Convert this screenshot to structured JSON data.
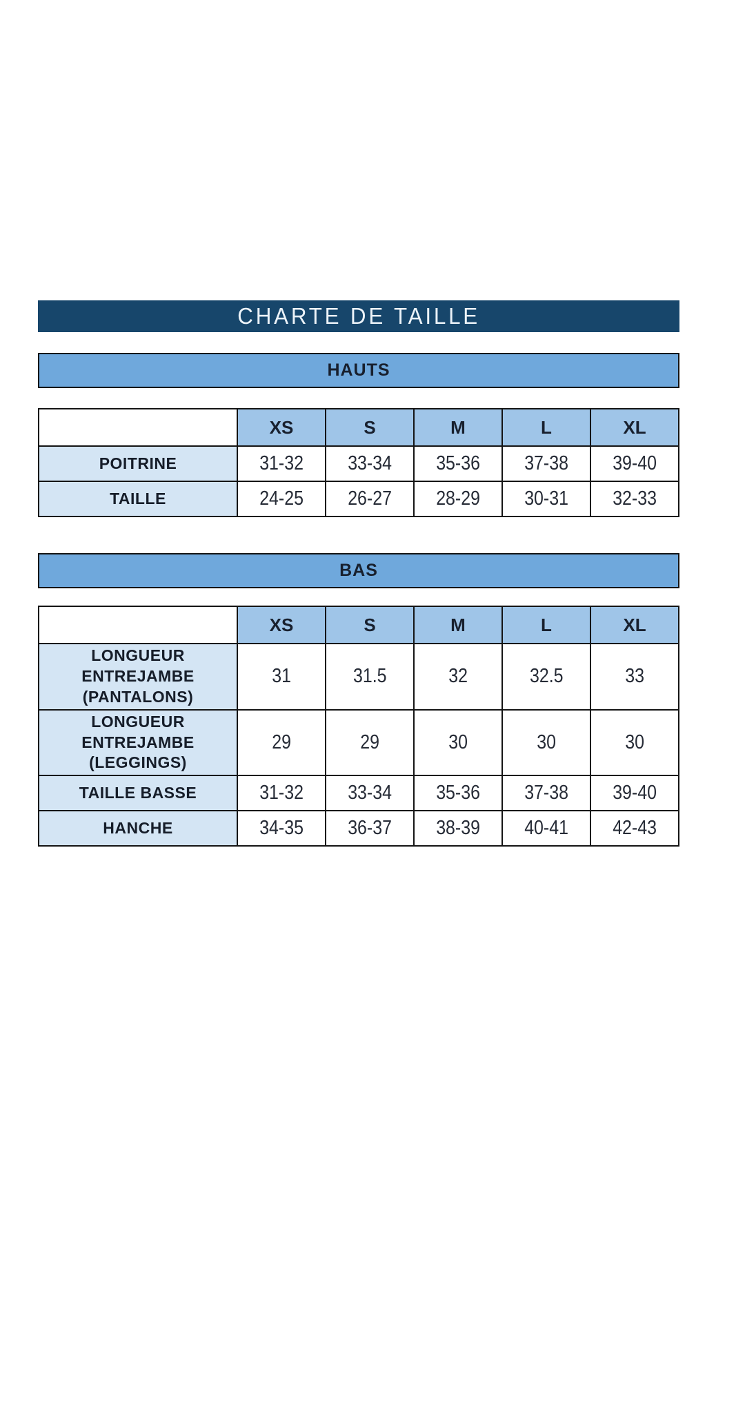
{
  "title": "CHARTE DE TAILLE",
  "sizes": [
    "XS",
    "S",
    "M",
    "L",
    "XL"
  ],
  "colors": {
    "title_bar": "#17466B",
    "section_banner": "#6FA8DC",
    "size_header": "#9FC5E8",
    "label_cell": "#D4E5F4",
    "border": "#141414",
    "title_text": "#ECF3F9",
    "cell_text": "#262B36"
  },
  "sections": [
    {
      "name": "HAUTS",
      "rows": [
        {
          "label": "POITRINE",
          "values": [
            "31-32",
            "33-34",
            "35-36",
            "37-38",
            "39-40"
          ]
        },
        {
          "label": "TAILLE",
          "values": [
            "24-25",
            "26-27",
            "28-29",
            "30-31",
            "32-33"
          ]
        }
      ]
    },
    {
      "name": "BAS",
      "rows": [
        {
          "label": "LONGUEUR ENTREJAMBE (PANTALONS)",
          "values": [
            "31",
            "31.5",
            "32",
            "32.5",
            "33"
          ]
        },
        {
          "label": "LONGUEUR ENTREJAMBE (LEGGINGS)",
          "values": [
            "29",
            "29",
            "30",
            "30",
            "30"
          ]
        },
        {
          "label": "TAILLE BASSE",
          "values": [
            "31-32",
            "33-34",
            "35-36",
            "37-38",
            "39-40"
          ]
        },
        {
          "label": "HANCHE",
          "values": [
            "34-35",
            "36-37",
            "38-39",
            "40-41",
            "42-43"
          ]
        }
      ]
    }
  ]
}
